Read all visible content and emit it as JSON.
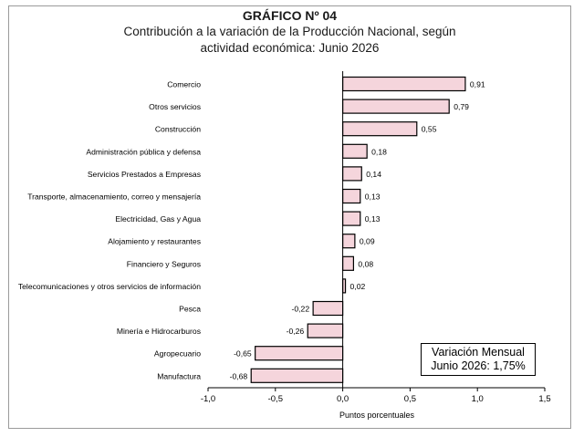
{
  "header": {
    "title": "GRÁFICO Nº 04",
    "subtitle_line1": "Contribución a la variación de la Producción Nacional, según",
    "subtitle_line2": "actividad económica: Junio 2026"
  },
  "callout": {
    "line1": "Variación Mensual",
    "line2": "Junio 2026: 1,75%"
  },
  "chart_data": {
    "type": "bar",
    "orientation": "horizontal",
    "title": "GRÁFICO Nº 04",
    "xlabel": "Puntos porcentuales",
    "ylabel": "",
    "xlim": [
      -1.0,
      1.5
    ],
    "xticks": [
      "-1,0",
      "-0,5",
      "0,0",
      "0,5",
      "1,0",
      "1,5"
    ],
    "xtick_values": [
      -1.0,
      -0.5,
      0.0,
      0.5,
      1.0,
      1.5
    ],
    "grid": false,
    "bar_color": "#f5d5dc",
    "bar_edge_color": "#000000",
    "categories": [
      "Comercio",
      "Otros servicios",
      "Construcción",
      "Administración pública y defensa",
      "Servicios Prestados a Empresas",
      "Transporte, almacenamiento, correo y mensajería",
      "Electricidad, Gas y Agua",
      "Alojamiento y restaurantes",
      "Financiero y Seguros",
      "Telecomunicaciones y otros servicios de información",
      "Pesca",
      "Minería e Hidrocarburos",
      "Agropecuario",
      "Manufactura"
    ],
    "values": [
      0.91,
      0.79,
      0.55,
      0.18,
      0.14,
      0.13,
      0.13,
      0.09,
      0.08,
      0.02,
      -0.22,
      -0.26,
      -0.65,
      -0.68
    ],
    "labels": [
      "0,91",
      "0,79",
      "0,55",
      "0,18",
      "0,14",
      "0,13",
      "0,13",
      "0,09",
      "0,08",
      "0,02",
      "-0,22",
      "-0,26",
      "-0,65",
      "-0,68"
    ]
  }
}
